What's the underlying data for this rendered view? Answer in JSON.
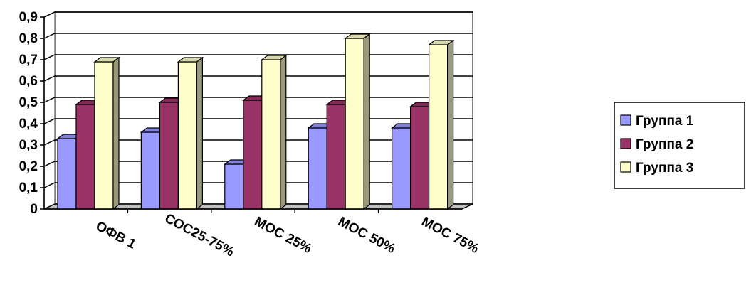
{
  "chart_data": {
    "type": "bar",
    "title": "",
    "xlabel": "",
    "ylabel": "",
    "categories": [
      "ОФВ 1",
      "СОС25-75%",
      "МОС 25%",
      "МОС 50%",
      "МОС 75%"
    ],
    "series": [
      {
        "name": "Группа 1",
        "values": [
          0.33,
          0.36,
          0.21,
          0.38,
          0.38
        ],
        "color": "#9999ff"
      },
      {
        "name": "Группа 2",
        "values": [
          0.49,
          0.5,
          0.51,
          0.49,
          0.48
        ],
        "color": "#993366"
      },
      {
        "name": "Группа 3",
        "values": [
          0.69,
          0.69,
          0.7,
          0.8,
          0.77
        ],
        "color": "#ffffcc"
      }
    ],
    "y_ticks": [
      "0",
      "0,1",
      "0,2",
      "0,3",
      "0,4",
      "0,5",
      "0,6",
      "0,7",
      "0,8",
      "0,9"
    ],
    "ylim": [
      0,
      0.9
    ],
    "grid": true,
    "style": "3d-clustered-column",
    "legend": "right"
  }
}
